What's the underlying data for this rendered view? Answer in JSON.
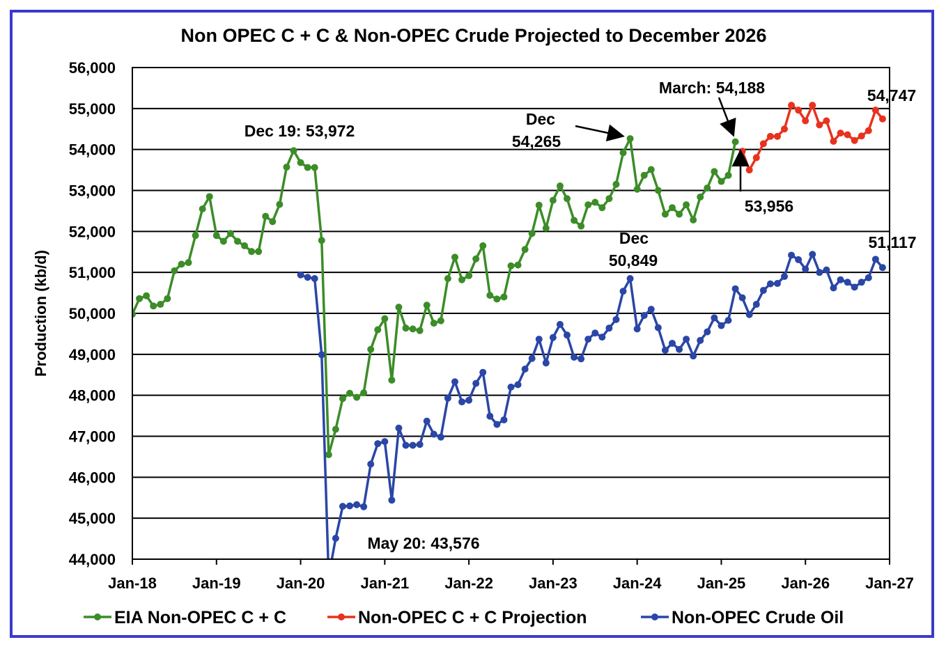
{
  "chart_data": {
    "type": "line",
    "title": "Non OPEC C + C & Non-OPEC Crude Projected to December 2026",
    "xlabel": "",
    "ylabel": "Production (kb/d)",
    "ylim": [
      44000,
      56000
    ],
    "yticks": [
      "44,000",
      "45,000",
      "46,000",
      "47,000",
      "48,000",
      "49,000",
      "50,000",
      "51,000",
      "52,000",
      "53,000",
      "54,000",
      "55,000",
      "56,000"
    ],
    "ytick_values": [
      44000,
      45000,
      46000,
      47000,
      48000,
      49000,
      50000,
      51000,
      52000,
      53000,
      54000,
      55000,
      56000
    ],
    "xticks": [
      "Jan-18",
      "Jan-19",
      "Jan-20",
      "Jan-21",
      "Jan-22",
      "Jan-23",
      "Jan-24",
      "Jan-25",
      "Jan-26",
      "Jan-27"
    ],
    "x_start": "Jan-18",
    "x_months_total": 108,
    "grid": true,
    "legend_position": "bottom",
    "series": [
      {
        "name": "EIA Non-OPEC C + C",
        "color": "#3c8c28",
        "start_month_index": 0,
        "values": [
          49980,
          50360,
          50430,
          50180,
          50220,
          50360,
          51040,
          51200,
          51240,
          51900,
          52550,
          52850,
          51900,
          51760,
          51950,
          51760,
          51650,
          51510,
          51510,
          52370,
          52240,
          52660,
          53570,
          53972,
          53680,
          53560,
          53560,
          51780,
          46550,
          47170,
          47920,
          48050,
          47950,
          48060,
          49120,
          49600,
          49870,
          48370,
          50150,
          49640,
          49620,
          49580,
          50200,
          49760,
          49820,
          50850,
          51370,
          50820,
          50920,
          51330,
          51650,
          50440,
          50350,
          50400,
          51160,
          51180,
          51560,
          51950,
          52640,
          52080,
          52760,
          53110,
          52800,
          52270,
          52130,
          52650,
          52710,
          52580,
          52800,
          53150,
          53920,
          54265,
          53030,
          53370,
          53510,
          53000,
          52420,
          52580,
          52420,
          52650,
          52280,
          52840,
          53060,
          53460,
          53220,
          53370,
          54188
        ]
      },
      {
        "name": "Non-OPEC C + C Projection",
        "color": "#e8321e",
        "start_month_index": 87,
        "values": [
          53956,
          53500,
          53800,
          54140,
          54320,
          54320,
          54500,
          55080,
          54960,
          54700,
          55080,
          54600,
          54700,
          54200,
          54400,
          54360,
          54220,
          54330,
          54460,
          54960,
          54747
        ]
      },
      {
        "name": "Non-OPEC Crude Oil",
        "color": "#2a46a6",
        "start_month_index": 24,
        "values": [
          50940,
          50880,
          50850,
          48990,
          43576,
          44510,
          45290,
          45300,
          45330,
          45280,
          46320,
          46820,
          46870,
          45440,
          47200,
          46780,
          46780,
          46800,
          47370,
          47050,
          46980,
          47930,
          48330,
          47840,
          47880,
          48290,
          48560,
          47490,
          47290,
          47400,
          48200,
          48260,
          48640,
          48900,
          49370,
          48790,
          49410,
          49730,
          49470,
          48930,
          48890,
          49370,
          49520,
          49420,
          49640,
          49850,
          50540,
          50849,
          49620,
          49950,
          50100,
          49650,
          49100,
          49270,
          49120,
          49370,
          48960,
          49340,
          49550,
          49890,
          49700,
          49830,
          50600,
          50380,
          49970,
          50220,
          50560,
          50720,
          50730,
          50900,
          51420,
          51310,
          51080,
          51440,
          51000,
          51060,
          50620,
          50820,
          50760,
          50640,
          50760,
          50870,
          51320,
          51117
        ]
      }
    ],
    "annotations": {
      "dec19": "Dec 19: 53,972",
      "dec23_l1": "Dec",
      "dec23_l2": "54,265",
      "march25": "March: 54,188",
      "apr25": "53,956",
      "dec26_cc": "54,747",
      "dec23_crude_l1": "Dec",
      "dec23_crude_l2": "50,849",
      "dec26_crude": "51,117",
      "may20": "May 20: 43,576"
    }
  }
}
